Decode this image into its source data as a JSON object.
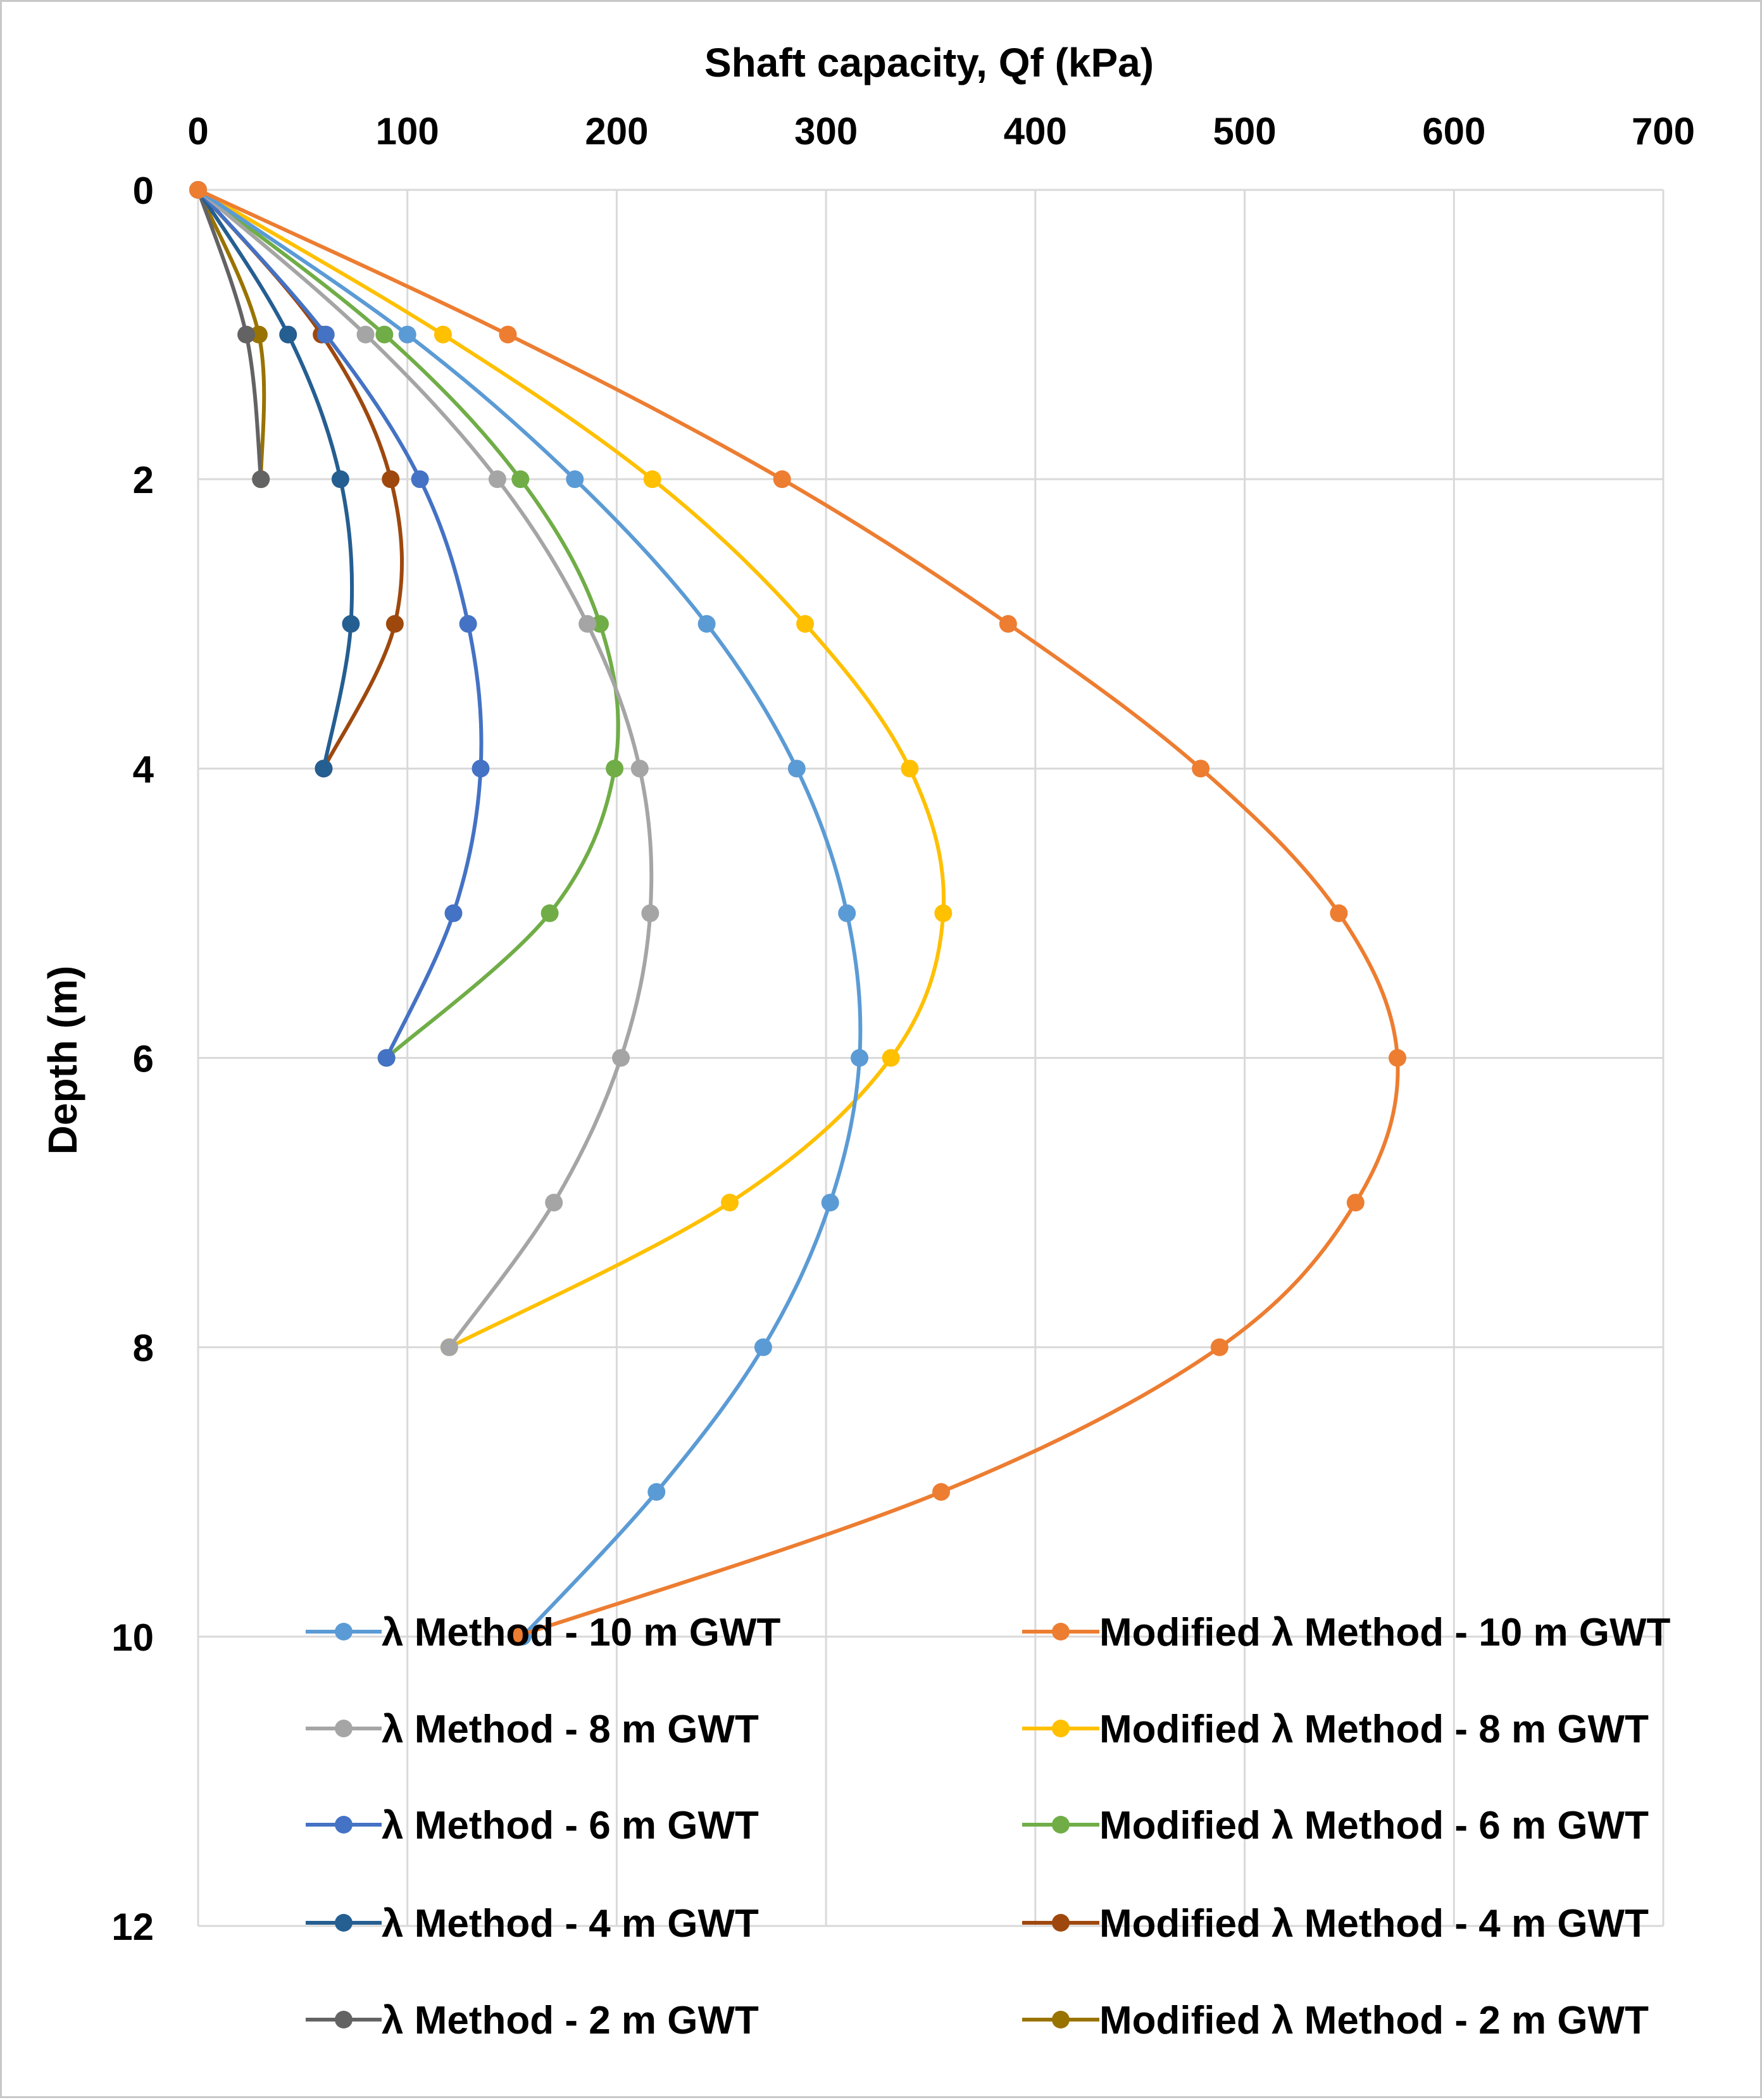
{
  "chart_data": {
    "type": "line",
    "title": "",
    "xlabel": "Shaft capacity, Qf (kPa)",
    "ylabel": "Depth (m)",
    "xlim": [
      0,
      700
    ],
    "ylim": [
      0,
      12
    ],
    "x_ticks": [
      "0",
      "100",
      "200",
      "300",
      "400",
      "500",
      "600",
      "700"
    ],
    "y_ticks": [
      "0",
      "2",
      "4",
      "6",
      "8",
      "10",
      "12"
    ],
    "x_axis_position": "top",
    "y_axis_reversed": true,
    "grid": true,
    "legend_position": "bottom, two columns",
    "series": [
      {
        "name": "λ Method - 10 m GWT",
        "color": "#5b9bd5",
        "depth": [
          0,
          1,
          2,
          3,
          4,
          5,
          6,
          7,
          8,
          9,
          10
        ],
        "qf": [
          0,
          100,
          180,
          243,
          286,
          310,
          316,
          302,
          270,
          219,
          155
        ]
      },
      {
        "name": "Modified λ Method - 10 m GWT",
        "color": "#ed7d31",
        "depth": [
          0,
          1,
          2,
          3,
          4,
          5,
          6,
          7,
          8,
          9,
          10
        ],
        "qf": [
          0,
          148,
          279,
          387,
          479,
          545,
          573,
          553,
          488,
          355,
          152
        ]
      },
      {
        "name": "λ Method - 8 m GWT",
        "color": "#a5a5a5",
        "depth": [
          0,
          1,
          2,
          3,
          4,
          5,
          6,
          7,
          8
        ],
        "qf": [
          0,
          80,
          143,
          186,
          211,
          216,
          202,
          170,
          120
        ]
      },
      {
        "name": "Modified λ Method - 8 m GWT",
        "color": "#ffc000",
        "depth": [
          0,
          1,
          2,
          3,
          4,
          5,
          6,
          7,
          8
        ],
        "qf": [
          0,
          117,
          217,
          290,
          340,
          356,
          331,
          254,
          120
        ]
      },
      {
        "name": "λ Method - 6 m GWT",
        "color": "#4472c4",
        "depth": [
          0,
          1,
          2,
          3,
          4,
          5,
          6
        ],
        "qf": [
          0,
          61,
          106,
          129,
          135,
          122,
          90
        ]
      },
      {
        "name": "Modified λ Method - 6 m GWT",
        "color": "#70ad47",
        "depth": [
          0,
          1,
          2,
          3,
          4,
          5,
          6
        ],
        "qf": [
          0,
          89,
          154,
          192,
          199,
          168,
          90
        ]
      },
      {
        "name": "λ Method - 4 m GWT",
        "color": "#255e91",
        "depth": [
          0,
          1,
          2,
          3,
          4
        ],
        "qf": [
          0,
          43,
          68,
          73,
          60
        ]
      },
      {
        "name": "Modified λ Method - 4 m GWT",
        "color": "#9e480e",
        "depth": [
          0,
          1,
          2,
          3,
          4
        ],
        "qf": [
          0,
          59,
          92,
          94,
          60
        ]
      },
      {
        "name": "λ Method - 2 m GWT",
        "color": "#636363",
        "depth": [
          0,
          1,
          2
        ],
        "qf": [
          0,
          23,
          30
        ]
      },
      {
        "name": "Modified λ Method - 2 m GWT",
        "color": "#997300",
        "depth": [
          0,
          1,
          2
        ],
        "qf": [
          0,
          29,
          30
        ]
      }
    ]
  }
}
